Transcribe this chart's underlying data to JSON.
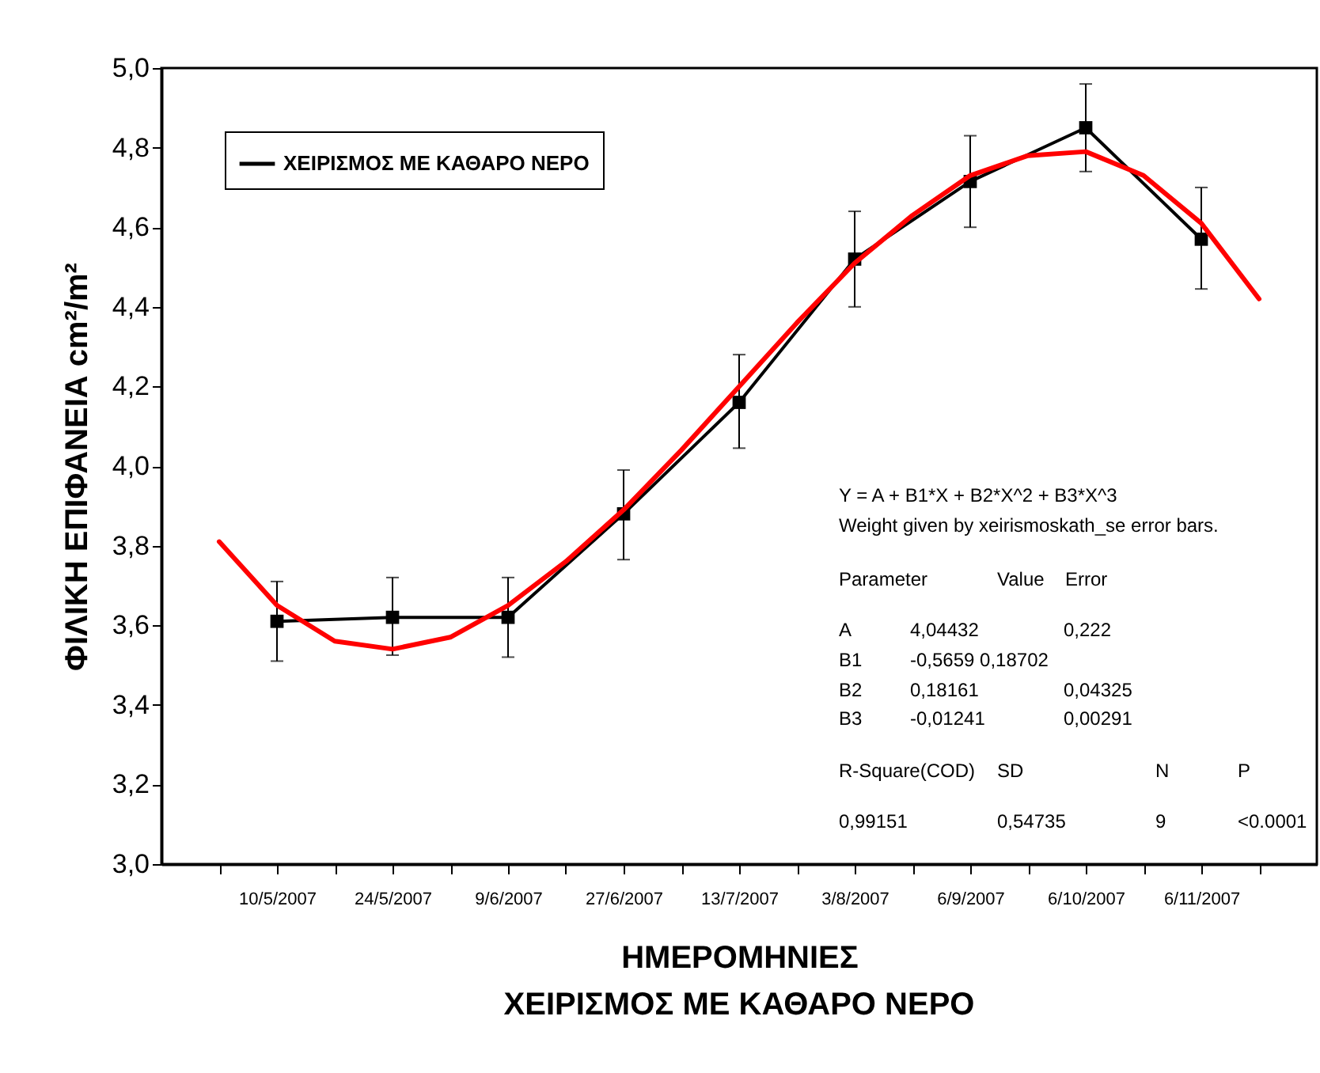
{
  "chart_data": {
    "type": "line",
    "title": "ΧΕΙΡΙΣΜΟΣ ΜΕ ΚΑΘΑΡΟ ΝΕΡΟ",
    "xlabel": "ΗΜΕΡΟΜΗΝΙΕΣ",
    "ylabel": "ΦΙΛΙΚΗ ΕΠΙΦΑΝΕΙΑ cm²/m²",
    "categories": [
      null,
      "10/5/2007",
      null,
      "24/5/2007",
      null,
      "9/6/2007",
      null,
      "27/6/2007",
      null,
      "13/7/2007",
      null,
      "3/8/2007",
      null,
      "6/9/2007",
      null,
      "6/10/2007",
      null,
      "6/11/2007",
      null
    ],
    "ylim": [
      3.0,
      5.0
    ],
    "yticks": [
      {
        "value": 3.0,
        "label": "3,0"
      },
      {
        "value": 3.2,
        "label": "3,2"
      },
      {
        "value": 3.4,
        "label": "3,4"
      },
      {
        "value": 3.6,
        "label": "3,6"
      },
      {
        "value": 3.8,
        "label": "3,8"
      },
      {
        "value": 4.0,
        "label": "4,0"
      },
      {
        "value": 4.2,
        "label": "4,2"
      },
      {
        "value": 4.4,
        "label": "4,4"
      },
      {
        "value": 4.6,
        "label": "4,6"
      },
      {
        "value": 4.8,
        "label": "4,8"
      },
      {
        "value": 5.0,
        "label": "5,0"
      }
    ],
    "series": [
      {
        "name": "ΧΕΙΡΙΣΜΟΣ ΜΕ ΚΑΘΑΡΟ ΝΕΡΟ",
        "color": "#000000",
        "marker": "square",
        "x": [
          "10/5/2007",
          "24/5/2007",
          "9/6/2007",
          "27/6/2007",
          "13/7/2007",
          "3/8/2007",
          "6/9/2007",
          "6/10/2007",
          "6/11/2007"
        ],
        "values": [
          3.61,
          3.62,
          3.62,
          3.88,
          4.16,
          4.52,
          4.715,
          4.85,
          4.57
        ],
        "errors": [
          [
            3.51,
            3.71
          ],
          [
            3.525,
            3.72
          ],
          [
            3.52,
            3.72
          ],
          [
            3.765,
            3.99
          ],
          [
            4.045,
            4.28
          ],
          [
            4.4,
            4.64
          ],
          [
            4.6,
            4.83
          ],
          [
            4.74,
            4.96
          ],
          [
            4.445,
            4.7
          ]
        ]
      },
      {
        "type": "line",
        "color": "#ff0000",
        "values": [
          3.81,
          3.65,
          3.56,
          3.54,
          3.57,
          3.65,
          3.76,
          3.89,
          4.04,
          4.2,
          4.36,
          4.51,
          4.63,
          4.73,
          4.78,
          4.79,
          4.73,
          4.61,
          4.42
        ]
      }
    ],
    "legend": "top left",
    "annotations": [
      "Y = A + B1*X + B2*X^2 + B3*X^3",
      "Weight given by xeirismoskath_se error bars.",
      "Parameter\tValue\tError",
      "A\t4,04432\t0,222",
      "B1\t-0,5659 0,18702",
      "B2\t0,18161\t0,04325",
      "B3\t-0,01241\t0,00291",
      "R-Square(COD)\tSD\tN\tP",
      "0,99151\t0,54735\t9\t<0.0001"
    ]
  }
}
